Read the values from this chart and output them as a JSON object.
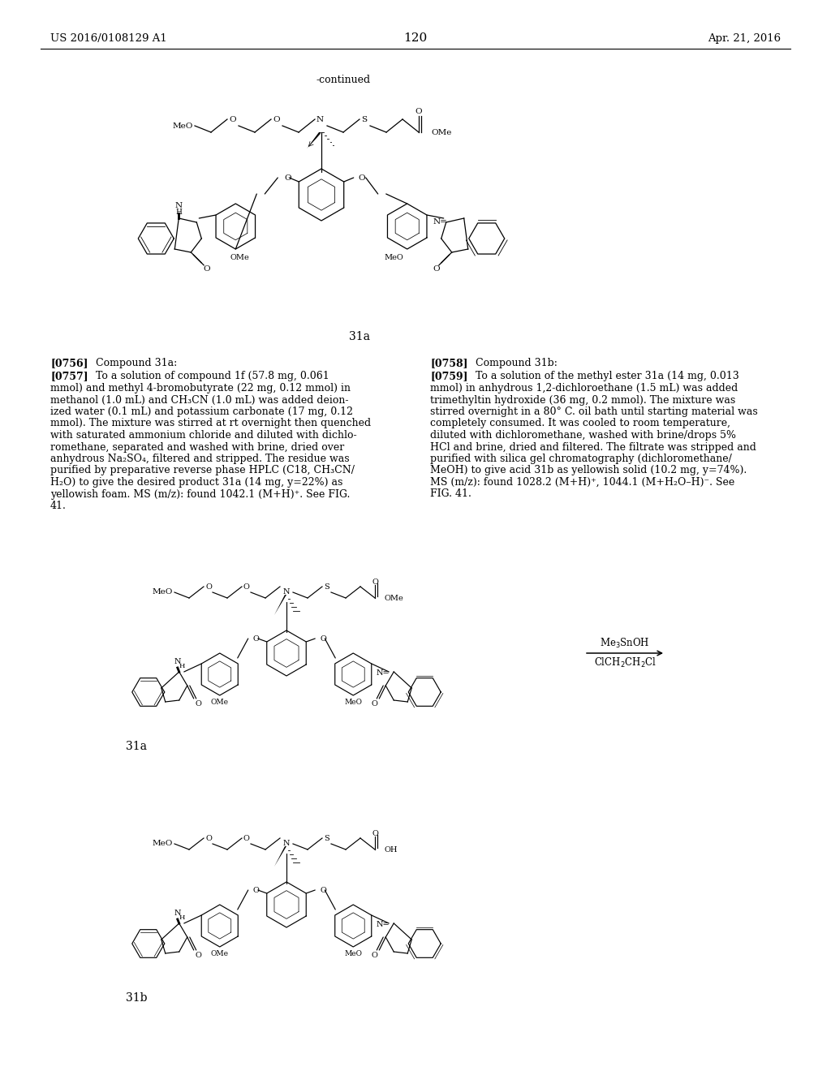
{
  "page_number": "120",
  "patent_number": "US 2016/0108129 A1",
  "patent_date": "Apr. 21, 2016",
  "continued_label": "-continued",
  "compound_label_top": "31a",
  "compound_label_mid": "31a",
  "compound_label_bot": "31b",
  "para_0756_title": "Compound 31a:",
  "para_0757_text": "To a solution of compound 1f (57.8 mg, 0.061\nmmol) and methyl 4-bromobutyrate (22 mg, 0.12 mmol) in\nmethanol (1.0 mL) and CH₃CN (1.0 mL) was added deion-\nized water (0.1 mL) and potassium carbonate (17 mg, 0.12\nmmol). The mixture was stirred at rt overnight then quenched\nwith saturated ammonium chloride and diluted with dichlo-\nromethane, separated and washed with brine, dried over\nanhydrous Na₂SO₄, filtered and stripped. The residue was\npurified by preparative reverse phase HPLC (C18, CH₃CN/\nH₂O) to give the desired product 31a (14 mg, y=22%) as\nyellowish foam. MS (m/z): found 1042.1 (M+H)⁺. See FIG.\n41.",
  "para_0758_title": "Compound 31b:",
  "para_0759_text": "To a solution of the methyl ester 31a (14 mg, 0.013\nmmol) in anhydrous 1,2-dichloroethane (1.5 mL) was added\ntrimethyltin hydroxide (36 mg, 0.2 mmol). The mixture was\nstirred overnight in a 80° C. oil bath until starting material was\ncompletely consumed. It was cooled to room temperature,\ndiluted with dichloromethane, washed with brine/drops 5%\nHCl and brine, dried and filtered. The filtrate was stripped and\npurified with silica gel chromatography (dichloromethane/\nMeOH) to give acid 31b as yellowish solid (10.2 mg, y=74%).\nMS (m/z): found 1028.2 (M+H)⁺, 1044.1 (M+H₂O–H)⁻. See\nFIG. 41.",
  "bg_color": "#ffffff",
  "text_color": "#000000"
}
